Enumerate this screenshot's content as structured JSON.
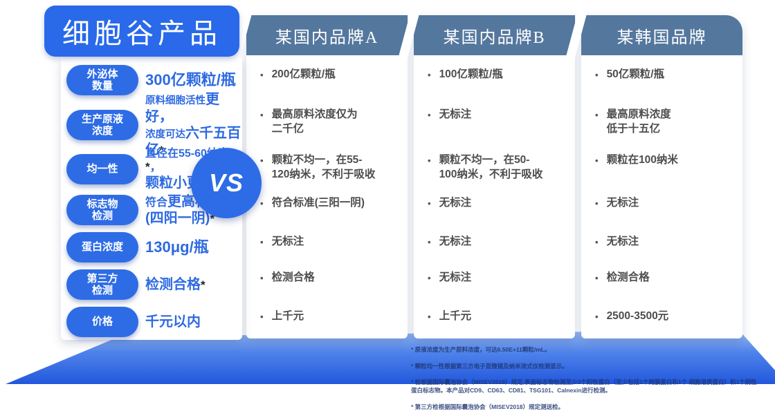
{
  "colors": {
    "accent_blue": "#2a6ae6",
    "header_blue": "#2969ea",
    "competitor_header_blue": "#54779d",
    "body_text_gray": "#4d4d4d",
    "bottom_gradient_top": "#aac7f2",
    "bottom_gradient_bottom": "#2257dd"
  },
  "header": {
    "title": "细胞谷产品"
  },
  "vs_label": "VS",
  "row_labels": [
    "外泌体\n数量",
    "生产原液\n浓度",
    "均一性",
    "标志物\n检测",
    "蛋白浓度",
    "第三方\n检测",
    "价格"
  ],
  "product": {
    "values": [
      {
        "text": "300亿颗粒/瓶"
      },
      {
        "small1": "原料细胞活性",
        "big1": "更好，",
        "small2": "浓度可达",
        "big2": "六千五百亿",
        "star": "*"
      },
      {
        "line1": "直径在55-60纳米",
        "star": "*",
        "comma": "，",
        "line2": "颗粒小更易吸收"
      },
      {
        "prefix": "符合",
        "big1": "更高标准",
        "big2": "(四阳一阴)",
        "star": "*"
      },
      {
        "text": "130μg/瓶"
      },
      {
        "text": "检测合格",
        "star": "*"
      },
      {
        "text": "千元以内"
      }
    ]
  },
  "competitors": [
    {
      "name": "某国内品牌A",
      "values": [
        "200亿颗粒/瓶",
        "最高原料浓度仅为\n二千亿",
        "颗粒不均一，在55-\n120纳米，不利于吸收",
        "符合标准(三阳一阴)",
        "无标注",
        "检测合格",
        "上千元"
      ]
    },
    {
      "name": "某国内品牌B",
      "values": [
        "100亿颗粒/瓶",
        "无标注",
        "颗粒不均一，在50-\n100纳米，不利于吸收",
        "无标注",
        "无标注",
        "无标注",
        "上千元"
      ]
    },
    {
      "name": "某韩国品牌",
      "values": [
        "50亿颗粒/瓶",
        "最高原料浓度\n低于十五亿",
        "颗粒在100纳米",
        "无标注",
        "无标注",
        "检测合格",
        "2500-3500元"
      ]
    }
  ],
  "footnotes": [
    "* 原液浓度为生产原料浓度，可达6.50E+11颗粒/mL。",
    "* 颗粒均一性根据第三方电子显微镜及纳米流式仪检测显示。",
    "* 检根据国际囊泡协会（MISEV2018）规定,表面标志物检测至少3个阳性蛋白（至少包括1个跨膜蛋白和1个 细胞溶质蛋白）和1个阴性蛋白标志物。本产品对CD9、CD63、CD81、TSG101、Calnexin进行检测。",
    "* 第三方检根据国际囊泡协会（MISEV2018）规定测送检。"
  ]
}
